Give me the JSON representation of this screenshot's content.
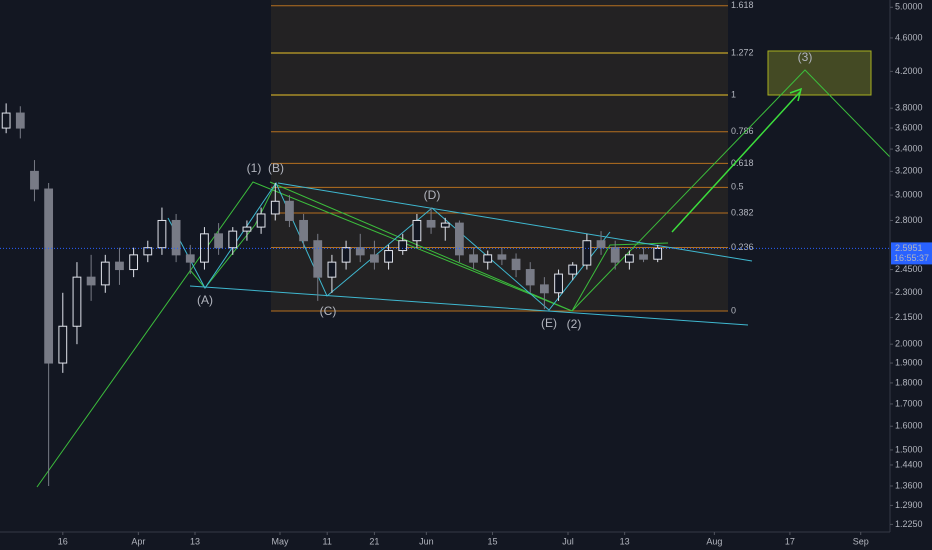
{
  "chart_data": {
    "type": "candlestick",
    "log_scale": true,
    "up_color": "#e0e3eb",
    "down_color": "#787b86",
    "x": [
      -12,
      -9,
      -6,
      -3,
      0,
      3,
      6,
      9,
      12,
      15,
      18,
      21,
      24,
      27,
      30,
      33,
      36,
      39,
      42,
      45,
      48,
      51,
      54,
      57,
      60,
      63,
      66,
      69,
      72,
      75,
      78,
      81,
      84,
      87,
      90,
      93,
      96,
      99,
      102,
      105,
      108,
      111,
      114,
      117,
      120,
      123,
      126
    ],
    "open": [
      3.6,
      3.75,
      3.2,
      3.05,
      1.9,
      2.1,
      2.4,
      2.35,
      2.5,
      2.45,
      2.55,
      2.6,
      2.8,
      2.55,
      2.5,
      2.7,
      2.6,
      2.72,
      2.75,
      2.85,
      2.95,
      2.8,
      2.65,
      2.4,
      2.5,
      2.6,
      2.55,
      2.5,
      2.58,
      2.65,
      2.8,
      2.75,
      2.78,
      2.55,
      2.5,
      2.55,
      2.52,
      2.45,
      2.35,
      2.3,
      2.42,
      2.48,
      2.65,
      2.6,
      2.5,
      2.55,
      2.52
    ],
    "high": [
      3.85,
      3.82,
      3.3,
      3.1,
      2.3,
      2.5,
      2.55,
      2.55,
      2.6,
      2.6,
      2.65,
      2.9,
      2.85,
      2.62,
      2.75,
      2.78,
      2.75,
      2.8,
      2.9,
      3.1,
      3.0,
      2.85,
      2.7,
      2.55,
      2.65,
      2.7,
      2.65,
      2.62,
      2.7,
      2.85,
      2.9,
      2.82,
      2.8,
      2.6,
      2.58,
      2.6,
      2.56,
      2.5,
      2.4,
      2.45,
      2.5,
      2.7,
      2.72,
      2.65,
      2.58,
      2.6,
      2.62
    ],
    "low": [
      3.55,
      3.5,
      2.95,
      1.36,
      1.85,
      2.0,
      2.25,
      2.3,
      2.35,
      2.4,
      2.5,
      2.55,
      2.5,
      2.42,
      2.45,
      2.55,
      2.55,
      2.65,
      2.7,
      2.8,
      2.75,
      2.6,
      2.25,
      2.3,
      2.45,
      2.5,
      2.45,
      2.45,
      2.55,
      2.6,
      2.7,
      2.65,
      2.5,
      2.45,
      2.45,
      2.48,
      2.4,
      2.3,
      2.2,
      2.25,
      2.38,
      2.45,
      2.55,
      2.45,
      2.45,
      2.5,
      2.5
    ],
    "close": [
      3.75,
      3.6,
      3.05,
      1.9,
      2.1,
      2.4,
      2.35,
      2.5,
      2.45,
      2.55,
      2.6,
      2.8,
      2.55,
      2.5,
      2.7,
      2.6,
      2.72,
      2.75,
      2.85,
      2.95,
      2.8,
      2.65,
      2.4,
      2.5,
      2.6,
      2.55,
      2.5,
      2.58,
      2.65,
      2.8,
      2.75,
      2.78,
      2.55,
      2.5,
      2.55,
      2.52,
      2.45,
      2.35,
      2.3,
      2.42,
      2.48,
      2.65,
      2.6,
      2.5,
      2.55,
      2.52,
      2.5951
    ],
    "xlim": [
      -13.3,
      175.2
    ],
    "ylim": [
      1.2,
      5.1
    ],
    "xticks": [
      {
        "value": 0,
        "label": "16"
      },
      {
        "value": 16,
        "label": "Apr"
      },
      {
        "value": 28,
        "label": "13"
      },
      {
        "value": 46,
        "label": "May"
      },
      {
        "value": 56,
        "label": "11"
      },
      {
        "value": 66,
        "label": "21"
      },
      {
        "value": 77,
        "label": "Jun"
      },
      {
        "value": 91,
        "label": "15"
      },
      {
        "value": 107,
        "label": "Jul"
      },
      {
        "value": 119,
        "label": "13"
      },
      {
        "value": 138,
        "label": "Aug"
      },
      {
        "value": 154,
        "label": "17"
      },
      {
        "value": 169,
        "label": "Sep"
      }
    ],
    "yticks": [
      {
        "value": 5,
        "label": "5.0000"
      },
      {
        "value": 4.6,
        "label": "4.6000"
      },
      {
        "value": 4.2,
        "label": "4.2000"
      },
      {
        "value": 3.8,
        "label": "3.8000"
      },
      {
        "value": 3.6,
        "label": "3.6000"
      },
      {
        "value": 3.4,
        "label": "3.4000"
      },
      {
        "value": 3.2,
        "label": "3.2000"
      },
      {
        "value": 3,
        "label": "3.0000"
      },
      {
        "value": 2.8,
        "label": "2.8000"
      },
      {
        "value": 2.45,
        "label": "2.4500"
      },
      {
        "value": 2.3,
        "label": "2.3000"
      },
      {
        "value": 2.15,
        "label": "2.1500"
      },
      {
        "value": 2,
        "label": "2.0000"
      },
      {
        "value": 1.9,
        "label": "1.9000"
      },
      {
        "value": 1.8,
        "label": "1.8000"
      },
      {
        "value": 1.7,
        "label": "1.7000"
      },
      {
        "value": 1.6,
        "label": "1.6000"
      },
      {
        "value": 1.5,
        "label": "1.5000"
      },
      {
        "value": 1.44,
        "label": "1.4400"
      },
      {
        "value": 1.36,
        "label": "1.3600"
      },
      {
        "value": 1.29,
        "label": "1.2900"
      },
      {
        "value": 1.225,
        "label": "1.2250"
      }
    ],
    "fib_levels": [
      1.618,
      1.272,
      1,
      0.786,
      0.618,
      0.5,
      0.382,
      0.236,
      0
    ],
    "wave_labels": [
      "(1)",
      "(B)",
      "(A)",
      "(C)",
      "(D)",
      "(E)",
      "(2)",
      "(3)"
    ],
    "countdown": "16:55:37"
  }
}
